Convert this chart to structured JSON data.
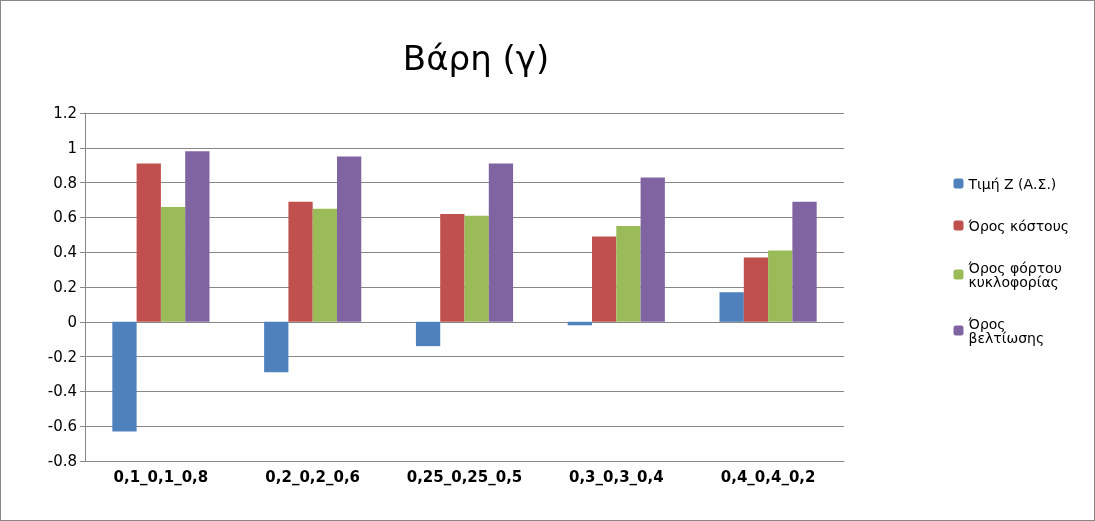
{
  "chart_data": {
    "type": "bar",
    "title": "Βάρη (γ)",
    "categories": [
      "0,1_0,1_0,8",
      "0,2_0,2_0,6",
      "0,25_0,25_0,5",
      "0,3_0,3_0,4",
      "0,4_0,4_0,2"
    ],
    "series": [
      {
        "name": "Τιμή Z (Α.Σ.)",
        "color": "#4f81bd",
        "values": [
          -0.63,
          -0.29,
          -0.14,
          -0.02,
          0.17
        ]
      },
      {
        "name": "Όρος κόστους",
        "color": "#c0504d",
        "values": [
          0.91,
          0.69,
          0.62,
          0.49,
          0.37
        ]
      },
      {
        "name": "Όρος φόρτου κυκλοφορίας",
        "color": "#9bbb59",
        "values": [
          0.66,
          0.65,
          0.61,
          0.55,
          0.41
        ]
      },
      {
        "name": "Όρος βελτίωσης",
        "color": "#8064a2",
        "values": [
          0.98,
          0.95,
          0.91,
          0.83,
          0.69
        ]
      }
    ],
    "ylim": [
      -0.8,
      1.2
    ],
    "yticks": [
      -0.8,
      -0.6,
      -0.4,
      -0.2,
      0,
      0.2,
      0.4,
      0.6,
      0.8,
      1,
      1.2
    ],
    "grid": "y",
    "legend": "right"
  }
}
